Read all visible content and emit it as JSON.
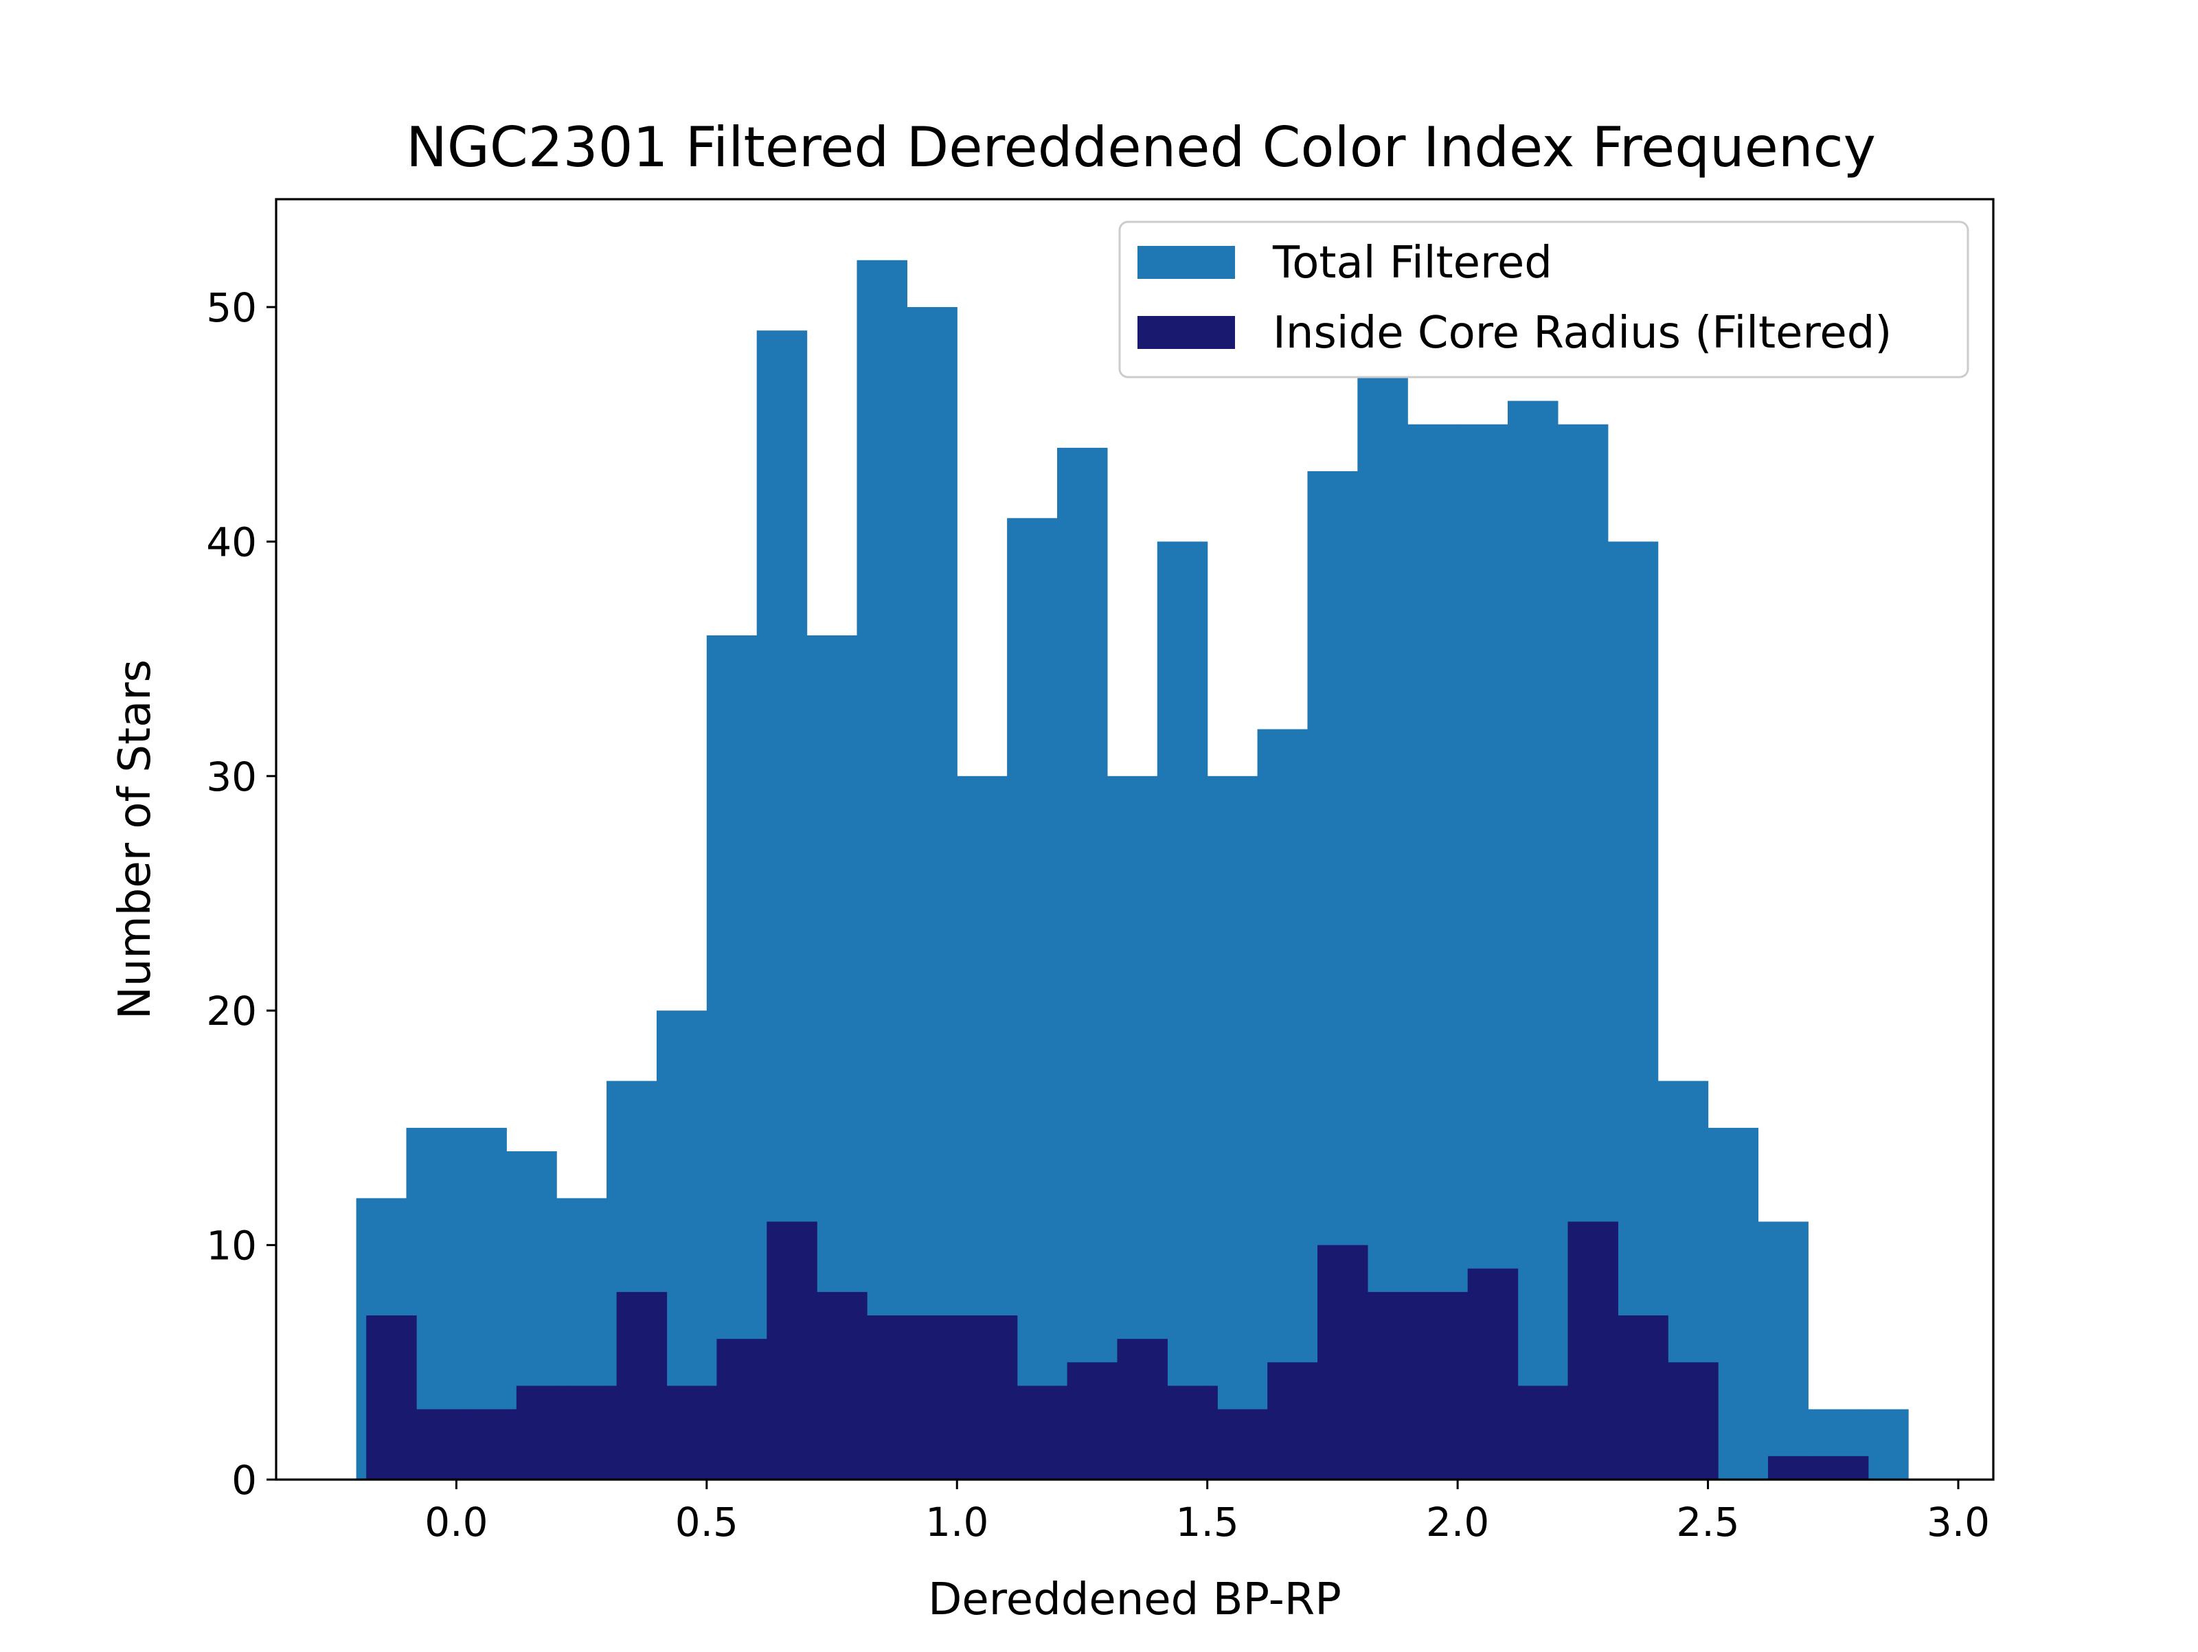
{
  "chart_data": {
    "type": "bar",
    "title": "NGC2301 Filtered Dereddened Color Index Frequency",
    "xlabel": "Dereddened BP-RP",
    "ylabel": "Number of Stars",
    "xlim": [
      -0.36,
      3.07
    ],
    "ylim": [
      0,
      54.6
    ],
    "grid": false,
    "legend_position": "top-right",
    "xticks": [
      0.0,
      0.5,
      1.0,
      1.5,
      2.0,
      2.5,
      3.0
    ],
    "xtick_labels": [
      "0.0",
      "0.5",
      "1.0",
      "1.5",
      "2.0",
      "2.5",
      "3.0"
    ],
    "yticks": [
      0,
      10,
      20,
      30,
      40,
      50
    ],
    "ytick_labels": [
      "0",
      "10",
      "20",
      "30",
      "40",
      "50"
    ],
    "series": [
      {
        "name": "Total Filtered",
        "color": "#1f77b4",
        "bin_start": -0.2,
        "bin_width": 0.1,
        "values": [
          12,
          15,
          15,
          14,
          12,
          17,
          20,
          36,
          49,
          36,
          52,
          50,
          30,
          41,
          44,
          30,
          40,
          30,
          32,
          43,
          47,
          45,
          45,
          46,
          45,
          40,
          17,
          15,
          11,
          3,
          3
        ]
      },
      {
        "name": "Inside Core Radius (Filtered)",
        "color": "#191970",
        "bin_start": -0.18,
        "bin_width": 0.1,
        "values": [
          7,
          3,
          3,
          4,
          4,
          8,
          4,
          6,
          11,
          8,
          7,
          7,
          7,
          4,
          5,
          6,
          4,
          3,
          5,
          10,
          8,
          8,
          9,
          4,
          11,
          7,
          5,
          0,
          1,
          1
        ]
      }
    ]
  }
}
